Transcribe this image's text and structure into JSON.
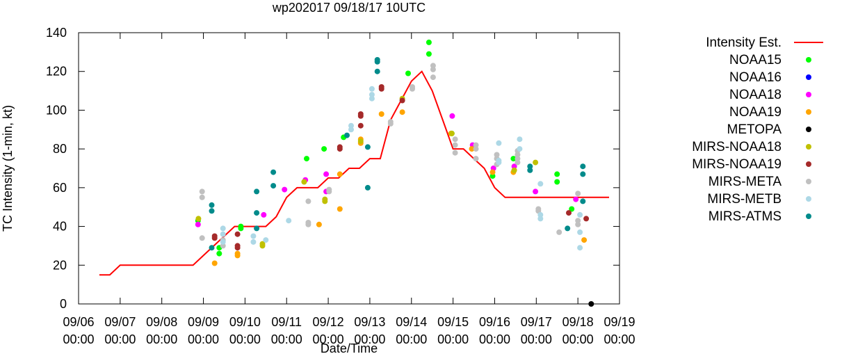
{
  "chart_data": {
    "type": "scatter",
    "title": "wp202017 09/18/17 10UTC",
    "xlabel": "Date/Time",
    "ylabel": "TC Intensity (1-min, kt)",
    "ylim": [
      0,
      140
    ],
    "yticks": [
      0,
      20,
      40,
      60,
      80,
      100,
      120,
      140
    ],
    "xlim": [
      0,
      13
    ],
    "x_units": "days after 09/06 00:00",
    "xticks": [
      {
        "date": "09/06",
        "time": "00:00"
      },
      {
        "date": "09/07",
        "time": "00:00"
      },
      {
        "date": "09/08",
        "time": "00:00"
      },
      {
        "date": "09/09",
        "time": "00:00"
      },
      {
        "date": "09/10",
        "time": "00:00"
      },
      {
        "date": "09/11",
        "time": "00:00"
      },
      {
        "date": "09/12",
        "time": "00:00"
      },
      {
        "date": "09/13",
        "time": "00:00"
      },
      {
        "date": "09/14",
        "time": "00:00"
      },
      {
        "date": "09/15",
        "time": "00:00"
      },
      {
        "date": "09/16",
        "time": "00:00"
      },
      {
        "date": "09/17",
        "time": "00:00"
      },
      {
        "date": "09/18",
        "time": "00:00"
      },
      {
        "date": "09/19",
        "time": "00:00"
      }
    ],
    "grid": false,
    "legend_position": "right",
    "intensity_est": {
      "name": "Intensity Est.",
      "color": "#ff0000",
      "x": [
        0.5,
        0.75,
        1.0,
        1.25,
        2.0,
        2.75,
        3.0,
        3.5,
        3.75,
        4.0,
        4.25,
        4.5,
        4.75,
        5.0,
        5.25,
        5.5,
        5.75,
        6.0,
        6.25,
        6.5,
        6.75,
        7.0,
        7.25,
        7.5,
        7.75,
        8.0,
        8.25,
        8.5,
        8.75,
        9.0,
        9.25,
        9.5,
        9.75,
        10.0,
        10.25,
        10.5,
        11.0,
        12.0,
        12.75
      ],
      "y": [
        15,
        15,
        20,
        20,
        20,
        20,
        25,
        35,
        40,
        40,
        40,
        40,
        45,
        55,
        60,
        60,
        60,
        65,
        65,
        70,
        70,
        75,
        75,
        95,
        105,
        115,
        120,
        110,
        95,
        80,
        80,
        75,
        70,
        60,
        55,
        55,
        55,
        55,
        55
      ]
    },
    "series": [
      {
        "name": "NOAA15",
        "color": "#00ff00",
        "points": [
          [
            2.87,
            43
          ],
          [
            3.38,
            29
          ],
          [
            3.38,
            26
          ],
          [
            3.9,
            39
          ],
          [
            3.9,
            40
          ],
          [
            5.48,
            75
          ],
          [
            5.9,
            80
          ],
          [
            6.37,
            86
          ],
          [
            7.92,
            119
          ],
          [
            8.42,
            135
          ],
          [
            8.42,
            129
          ],
          [
            8.97,
            88
          ],
          [
            9.95,
            66
          ],
          [
            10.45,
            75
          ],
          [
            11.5,
            67
          ],
          [
            11.5,
            63
          ],
          [
            11.85,
            49
          ]
        ]
      },
      {
        "name": "NOAA16",
        "color": "#0000ff",
        "points": []
      },
      {
        "name": "NOAA18",
        "color": "#ff00ff",
        "points": [
          [
            2.87,
            41
          ],
          [
            4.45,
            46
          ],
          [
            4.95,
            59
          ],
          [
            5.45,
            64
          ],
          [
            5.95,
            58
          ],
          [
            5.95,
            67
          ],
          [
            8.98,
            97
          ],
          [
            9.47,
            82
          ],
          [
            9.97,
            70
          ],
          [
            10.47,
            71
          ],
          [
            10.98,
            58
          ],
          [
            11.95,
            54
          ]
        ]
      },
      {
        "name": "NOAA19",
        "color": "#ffa500",
        "points": [
          [
            3.27,
            21
          ],
          [
            3.82,
            25
          ],
          [
            3.82,
            26
          ],
          [
            5.78,
            41
          ],
          [
            6.28,
            49
          ],
          [
            6.28,
            67
          ],
          [
            6.78,
            83
          ],
          [
            6.78,
            85
          ],
          [
            7.28,
            98
          ],
          [
            7.78,
            99
          ],
          [
            8.95,
            88
          ],
          [
            9.45,
            80
          ],
          [
            9.95,
            68
          ],
          [
            10.45,
            68
          ],
          [
            12.15,
            33
          ]
        ]
      },
      {
        "name": "METOPA",
        "color": "#000000",
        "points": [
          [
            12.32,
            0
          ]
        ]
      },
      {
        "name": "MIRS-NOAA18",
        "color": "#c0c000",
        "points": [
          [
            2.88,
            44
          ],
          [
            4.42,
            30
          ],
          [
            4.42,
            31
          ],
          [
            5.42,
            63
          ],
          [
            5.92,
            53
          ],
          [
            5.92,
            54
          ],
          [
            6.78,
            84
          ],
          [
            7.78,
            106
          ],
          [
            8.97,
            88
          ],
          [
            10.47,
            69
          ],
          [
            10.98,
            73
          ]
        ]
      },
      {
        "name": "MIRS-NOAA19",
        "color": "#a52a2a",
        "points": [
          [
            3.27,
            34
          ],
          [
            3.27,
            35
          ],
          [
            3.82,
            29
          ],
          [
            3.82,
            30
          ],
          [
            3.82,
            36
          ],
          [
            6.28,
            80
          ],
          [
            6.28,
            81
          ],
          [
            6.78,
            92
          ],
          [
            6.78,
            97
          ],
          [
            6.78,
            98
          ],
          [
            7.28,
            111
          ],
          [
            7.28,
            112
          ],
          [
            7.78,
            105
          ],
          [
            11.78,
            47
          ],
          [
            12.2,
            44
          ]
        ]
      },
      {
        "name": "MIRS-META",
        "color": "#c0c0c0",
        "points": [
          [
            2.97,
            58
          ],
          [
            2.97,
            55
          ],
          [
            2.97,
            34
          ],
          [
            3.47,
            33
          ],
          [
            3.47,
            30
          ],
          [
            5.52,
            53
          ],
          [
            5.52,
            42
          ],
          [
            5.52,
            41
          ],
          [
            6.02,
            59
          ],
          [
            6.02,
            58
          ],
          [
            7.5,
            93
          ],
          [
            7.5,
            94
          ],
          [
            8.02,
            111
          ],
          [
            8.02,
            112
          ],
          [
            8.52,
            123
          ],
          [
            8.52,
            121
          ],
          [
            8.52,
            117
          ],
          [
            9.05,
            85
          ],
          [
            9.05,
            82
          ],
          [
            9.05,
            78
          ],
          [
            9.55,
            82
          ],
          [
            9.55,
            80
          ],
          [
            9.55,
            75
          ],
          [
            10.05,
            77
          ],
          [
            10.05,
            75
          ],
          [
            10.05,
            72
          ],
          [
            10.55,
            79
          ],
          [
            10.55,
            77
          ],
          [
            10.55,
            75
          ],
          [
            10.55,
            73
          ],
          [
            11.05,
            49
          ],
          [
            11.05,
            48
          ],
          [
            11.55,
            37
          ],
          [
            12.0,
            57
          ],
          [
            12.0,
            43
          ],
          [
            12.0,
            41
          ]
        ]
      },
      {
        "name": "MIRS-METB",
        "color": "#add8e6",
        "points": [
          [
            3.47,
            39
          ],
          [
            3.47,
            36
          ],
          [
            3.47,
            32
          ],
          [
            4.2,
            35
          ],
          [
            4.2,
            32
          ],
          [
            4.5,
            33
          ],
          [
            5.05,
            43
          ],
          [
            6.55,
            92
          ],
          [
            6.55,
            90
          ],
          [
            7.05,
            111
          ],
          [
            7.05,
            108
          ],
          [
            7.05,
            106
          ],
          [
            10.1,
            83
          ],
          [
            10.1,
            74
          ],
          [
            10.1,
            73
          ],
          [
            10.6,
            85
          ],
          [
            10.6,
            80
          ],
          [
            11.1,
            62
          ],
          [
            11.1,
            46
          ],
          [
            11.1,
            44
          ],
          [
            12.05,
            46
          ],
          [
            12.05,
            37
          ],
          [
            12.05,
            29
          ]
        ]
      },
      {
        "name": "MIRS-ATMS",
        "color": "#008b8b",
        "points": [
          [
            3.2,
            51
          ],
          [
            3.2,
            48
          ],
          [
            3.2,
            29
          ],
          [
            4.28,
            58
          ],
          [
            4.28,
            47
          ],
          [
            4.28,
            39
          ],
          [
            4.68,
            68
          ],
          [
            4.68,
            61
          ],
          [
            6.45,
            87
          ],
          [
            6.95,
            81
          ],
          [
            6.95,
            60
          ],
          [
            7.18,
            126
          ],
          [
            7.18,
            125
          ],
          [
            7.18,
            120
          ],
          [
            10.85,
            71
          ],
          [
            10.85,
            69
          ],
          [
            11.75,
            39
          ],
          [
            12.12,
            71
          ],
          [
            12.12,
            67
          ],
          [
            12.12,
            53
          ]
        ]
      }
    ]
  }
}
